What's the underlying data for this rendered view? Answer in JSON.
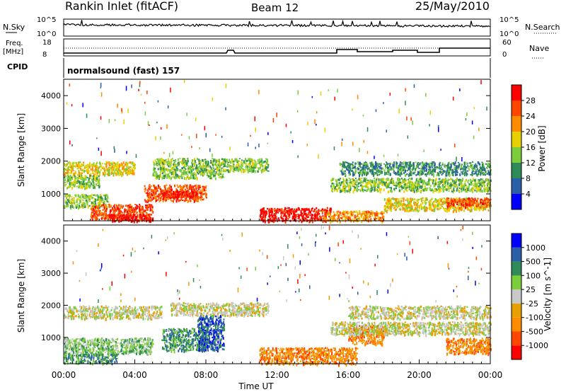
{
  "header": {
    "station": "Rankin Inlet (fitACF)",
    "beam": "Beam 12",
    "date": "25/May/2010"
  },
  "panels": {
    "nsky": {
      "left_label": "N.Sky",
      "right_label": "N.Search",
      "left_ticks": [
        "10^5",
        "10^0"
      ],
      "right_ticks": [
        "10^5",
        "10^0"
      ]
    },
    "freq": {
      "left_label_top": "Freq.",
      "left_label_bottom": "[MHz]",
      "right_label": "Nave",
      "left_ticks": [
        "18",
        "8"
      ],
      "right_ticks": [
        "60",
        "0"
      ]
    },
    "cpid": {
      "label": "CPID",
      "text": "normalsound (fast) 157"
    }
  },
  "colors": {
    "power_scale": [
      "#0000ff",
      "#2a5fa8",
      "#2e8b57",
      "#7ccd3c",
      "#e8d000",
      "#ff8c00",
      "#ff4500",
      "#ff0000"
    ],
    "velocity_scale": [
      "#ff0000",
      "#ff4500",
      "#ff8c00",
      "#e8a000",
      "#c8c8c8",
      "#7ccd3c",
      "#2e8b57",
      "#2a5fa8",
      "#0000ff"
    ]
  },
  "chart_data": [
    {
      "type": "heatmap",
      "name": "power",
      "xlabel": "",
      "ylabel": "Slant Range [km]",
      "colorbar_label": "Power [dB]",
      "colorbar_ticks": [
        "4",
        "8",
        "12",
        "16",
        "20",
        "24",
        "28"
      ],
      "xlim_hours": [
        0,
        24
      ],
      "ylim": [
        180,
        4500
      ],
      "y_ticks": [
        1000,
        2000,
        3000,
        4000
      ],
      "bands": [
        {
          "h0": 0.0,
          "h1": 4.0,
          "r0": 1600,
          "r1": 2000,
          "level": 4
        },
        {
          "h0": 0.0,
          "h1": 2.0,
          "r0": 1200,
          "r1": 1600,
          "level": 3
        },
        {
          "h0": 0.0,
          "h1": 2.5,
          "r0": 600,
          "r1": 1000,
          "level": 3
        },
        {
          "h0": 1.5,
          "h1": 5.0,
          "r0": 250,
          "r1": 700,
          "level": 6
        },
        {
          "h0": 2.5,
          "h1": 5.0,
          "r0": 180,
          "r1": 400,
          "level": 7
        },
        {
          "h0": 4.5,
          "h1": 8.0,
          "r0": 800,
          "r1": 1300,
          "level": 6
        },
        {
          "h0": 5.5,
          "h1": 7.5,
          "r0": 900,
          "r1": 1100,
          "level": 7
        },
        {
          "h0": 5.0,
          "h1": 9.0,
          "r0": 1500,
          "r1": 2100,
          "level": 3
        },
        {
          "h0": 9.0,
          "h1": 11.5,
          "r0": 1700,
          "r1": 2100,
          "level": 3
        },
        {
          "h0": 11.0,
          "h1": 15.0,
          "r0": 180,
          "r1": 600,
          "level": 7
        },
        {
          "h0": 14.5,
          "h1": 18.0,
          "r0": 180,
          "r1": 500,
          "level": 5
        },
        {
          "h0": 15.0,
          "h1": 24.0,
          "r0": 1100,
          "r1": 1500,
          "level": 3
        },
        {
          "h0": 15.5,
          "h1": 24.0,
          "r0": 1600,
          "r1": 2000,
          "level": 2
        },
        {
          "h0": 18.0,
          "h1": 24.0,
          "r0": 500,
          "r1": 900,
          "level": 4
        },
        {
          "h0": 21.5,
          "h1": 24.0,
          "r0": 600,
          "r1": 900,
          "level": 6
        }
      ]
    },
    {
      "type": "heatmap",
      "name": "velocity",
      "xlabel": "Time UT",
      "ylabel": "Slant Range [km]",
      "colorbar_label": "Velocity [m s^-1]",
      "colorbar_ticks": [
        "-1000",
        "-500",
        "-100",
        "-25",
        "25",
        "100",
        "500",
        "1000"
      ],
      "xlim_hours": [
        0,
        24
      ],
      "ylim": [
        180,
        4500
      ],
      "y_ticks": [
        1000,
        2000,
        3000,
        4000
      ],
      "x_ticks": [
        "00:00",
        "04:00",
        "08:00",
        "12:00",
        "16:00",
        "20:00",
        "00:00"
      ],
      "bands": [
        {
          "h0": 0.0,
          "h1": 5.5,
          "r0": 1600,
          "r1": 2000,
          "level": 4
        },
        {
          "h0": 0.0,
          "h1": 5.0,
          "r0": 500,
          "r1": 1000,
          "level": 5
        },
        {
          "h0": 0.0,
          "h1": 3.0,
          "r0": 200,
          "r1": 500,
          "level": 6
        },
        {
          "h0": 5.5,
          "h1": 8.0,
          "r0": 600,
          "r1": 1300,
          "level": 6
        },
        {
          "h0": 7.5,
          "h1": 9.0,
          "r0": 600,
          "r1": 1700,
          "level": 7
        },
        {
          "h0": 6.0,
          "h1": 11.5,
          "r0": 1700,
          "r1": 2100,
          "level": 4
        },
        {
          "h0": 11.0,
          "h1": 16.5,
          "r0": 180,
          "r1": 700,
          "level": 2
        },
        {
          "h0": 16.0,
          "h1": 18.0,
          "r0": 800,
          "r1": 1400,
          "level": 2
        },
        {
          "h0": 15.0,
          "h1": 24.0,
          "r0": 1100,
          "r1": 1500,
          "level": 4
        },
        {
          "h0": 16.0,
          "h1": 24.0,
          "r0": 1600,
          "r1": 2000,
          "level": 4
        },
        {
          "h0": 21.5,
          "h1": 24.0,
          "r0": 500,
          "r1": 1000,
          "level": 2
        }
      ]
    }
  ]
}
